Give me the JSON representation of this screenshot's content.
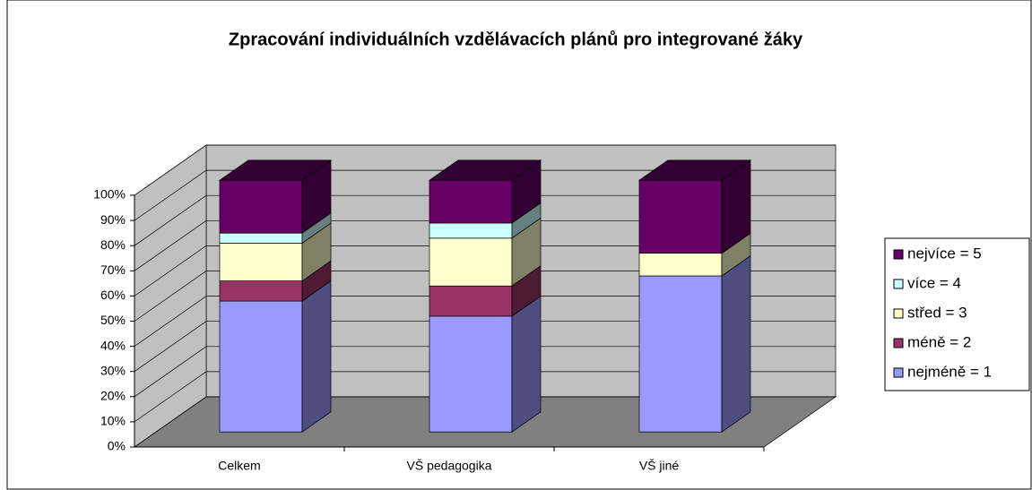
{
  "chart_data": {
    "type": "bar3d_stacked",
    "title": "Zpracování individuálních vzdělávacích plánů pro integrované žáky",
    "categories": [
      "Celkem",
      "VŠ pedagogika",
      "VŠ jiné"
    ],
    "series": [
      {
        "name": "nejméně = 1",
        "color": "#9999ff",
        "values": [
          52,
          46,
          62
        ]
      },
      {
        "name": "méně = 2",
        "color": "#993366",
        "values": [
          8,
          12,
          0
        ]
      },
      {
        "name": "střed = 3",
        "color": "#ffffcc",
        "values": [
          15,
          19,
          9
        ]
      },
      {
        "name": "více = 4",
        "color": "#ccffff",
        "values": [
          4,
          6,
          0
        ]
      },
      {
        "name": "nejvíce = 5",
        "color": "#660066",
        "values": [
          21,
          17,
          29
        ]
      }
    ],
    "ylim": [
      0,
      100
    ],
    "yticks": [
      {
        "value": 0,
        "label": "0%"
      },
      {
        "value": 10,
        "label": "10%"
      },
      {
        "value": 20,
        "label": "20%"
      },
      {
        "value": 30,
        "label": "30%"
      },
      {
        "value": 40,
        "label": "40%"
      },
      {
        "value": 50,
        "label": "50%"
      },
      {
        "value": 60,
        "label": "60%"
      },
      {
        "value": 70,
        "label": "70%"
      },
      {
        "value": 80,
        "label": "80%"
      },
      {
        "value": 90,
        "label": "90%"
      },
      {
        "value": 100,
        "label": "100%"
      }
    ],
    "grid": true,
    "legend": "right"
  }
}
